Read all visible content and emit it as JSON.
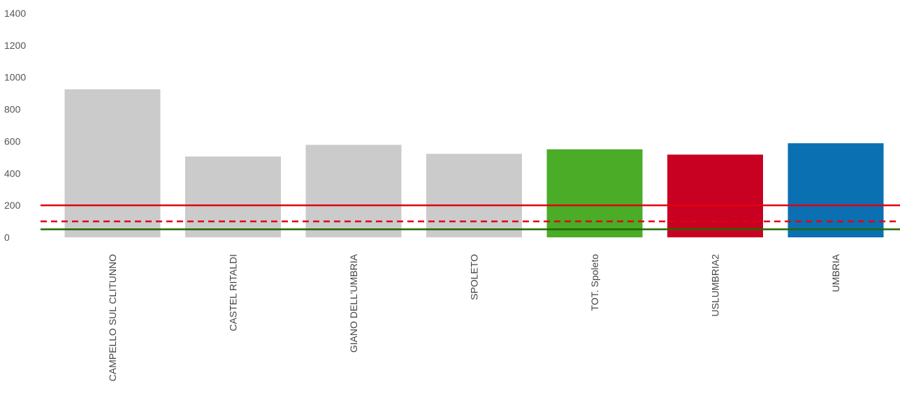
{
  "chart_data": {
    "type": "bar",
    "title": "",
    "xlabel": "",
    "ylabel": "",
    "ylim": [
      0,
      1400
    ],
    "yticks": [
      0,
      200,
      400,
      600,
      800,
      1000,
      1200,
      1400
    ],
    "grid": false,
    "categories": [
      "CAMPELLO SUL CLITUNNO",
      "CASTEL RITALDI",
      "GIANO DELL'UMBRIA",
      "SPOLETO",
      "TOT. Spoleto",
      "USLUMBRIA2",
      "UMBRIA"
    ],
    "values": [
      925,
      505,
      578,
      522,
      550,
      517,
      588
    ],
    "colors": [
      "#cbcbcb",
      "#cbcbcb",
      "#cbcbcb",
      "#cbcbcb",
      "#4aac27",
      "#c80022",
      "#0a70b2"
    ],
    "reference_lines": [
      {
        "value": 200,
        "color": "#e3000f",
        "style": "solid"
      },
      {
        "value": 100,
        "color": "#e3000f",
        "style": "dashed"
      },
      {
        "value": 50,
        "color": "#1e6a00",
        "style": "solid"
      }
    ]
  }
}
